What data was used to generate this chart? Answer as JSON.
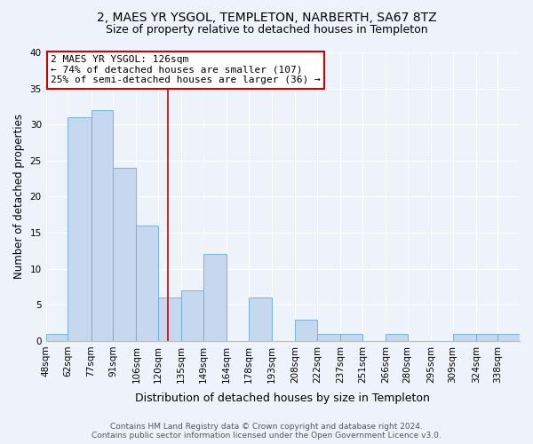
{
  "title": "2, MAES YR YSGOL, TEMPLETON, NARBERTH, SA67 8TZ",
  "subtitle": "Size of property relative to detached houses in Templeton",
  "xlabel": "Distribution of detached houses by size in Templeton",
  "ylabel": "Number of detached properties",
  "bin_labels": [
    "48sqm",
    "62sqm",
    "77sqm",
    "91sqm",
    "106sqm",
    "120sqm",
    "135sqm",
    "149sqm",
    "164sqm",
    "178sqm",
    "193sqm",
    "208sqm",
    "222sqm",
    "237sqm",
    "251sqm",
    "266sqm",
    "280sqm",
    "295sqm",
    "309sqm",
    "324sqm",
    "338sqm"
  ],
  "bin_edges": [
    48,
    62,
    77,
    91,
    106,
    120,
    135,
    149,
    164,
    178,
    193,
    208,
    222,
    237,
    251,
    266,
    280,
    295,
    309,
    324,
    338
  ],
  "bar_heights": [
    1,
    31,
    32,
    24,
    16,
    6,
    7,
    12,
    0,
    6,
    0,
    3,
    1,
    1,
    0,
    1,
    0,
    0,
    1,
    1,
    1
  ],
  "bar_color": "#c5d8f0",
  "bar_edge_color": "#6aaad4",
  "vline_x": 126,
  "vline_color": "#cc0000",
  "annotation_title": "2 MAES YR YSGOL: 126sqm",
  "annotation_line1": "← 74% of detached houses are smaller (107)",
  "annotation_line2": "25% of semi-detached houses are larger (36) →",
  "annotation_box_color": "#ffffff",
  "annotation_box_edge": "#cc0000",
  "ylim": [
    0,
    40
  ],
  "yticks": [
    0,
    5,
    10,
    15,
    20,
    25,
    30,
    35,
    40
  ],
  "footer_line1": "Contains HM Land Registry data © Crown copyright and database right 2024.",
  "footer_line2": "Contains public sector information licensed under the Open Government Licence v3.0.",
  "bg_color": "#eef2fa",
  "plot_bg_color": "#eef2fa",
  "grid_color": "#ffffff",
  "title_fontsize": 10,
  "subtitle_fontsize": 9,
  "ylabel_fontsize": 8.5,
  "xlabel_fontsize": 9,
  "tick_fontsize": 7.5,
  "ann_fontsize": 8,
  "footer_fontsize": 6.5
}
